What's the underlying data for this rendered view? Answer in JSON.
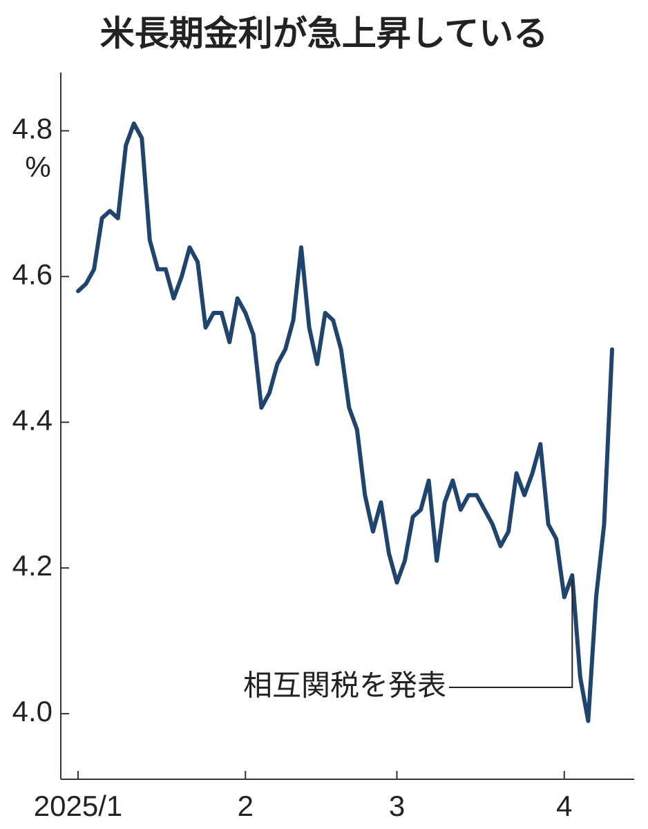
{
  "chart_data": {
    "type": "line",
    "title": "米長期金利が急上昇している",
    "y_unit": "%",
    "annotation": "相互関税を発表",
    "categories": [
      "2025/1",
      null,
      null,
      null,
      null,
      null,
      null,
      null,
      null,
      null,
      null,
      null,
      null,
      null,
      null,
      null,
      null,
      null,
      null,
      null,
      null,
      "2",
      null,
      null,
      null,
      null,
      null,
      null,
      null,
      null,
      null,
      null,
      null,
      null,
      null,
      null,
      null,
      null,
      null,
      null,
      "3",
      null,
      null,
      null,
      null,
      null,
      null,
      null,
      null,
      null,
      null,
      null,
      null,
      null,
      null,
      null,
      null,
      null,
      null,
      null,
      null,
      "4",
      null,
      null,
      null,
      null,
      null,
      null
    ],
    "series": [
      {
        "name": "米長期金利",
        "color": "#1f4470",
        "values": [
          4.58,
          4.59,
          4.61,
          4.68,
          4.69,
          4.68,
          4.78,
          4.81,
          4.79,
          4.65,
          4.61,
          4.61,
          4.57,
          4.6,
          4.64,
          4.62,
          4.53,
          4.55,
          4.55,
          4.51,
          4.57,
          4.55,
          4.52,
          4.42,
          4.44,
          4.48,
          4.5,
          4.54,
          4.64,
          4.53,
          4.48,
          4.55,
          4.54,
          4.5,
          4.42,
          4.39,
          4.3,
          4.25,
          4.29,
          4.22,
          4.18,
          4.21,
          4.27,
          4.28,
          4.32,
          4.21,
          4.29,
          4.32,
          4.28,
          4.3,
          4.3,
          4.28,
          4.26,
          4.23,
          4.25,
          4.33,
          4.3,
          4.33,
          4.37,
          4.26,
          4.24,
          4.16,
          4.19,
          4.05,
          3.99,
          4.16,
          4.26,
          4.5
        ]
      }
    ],
    "ylim": [
      3.91,
      4.88
    ],
    "yticks": [
      {
        "value": 4,
        "label": "4.0"
      },
      4.2,
      4.4,
      4.6,
      4.8
    ]
  }
}
